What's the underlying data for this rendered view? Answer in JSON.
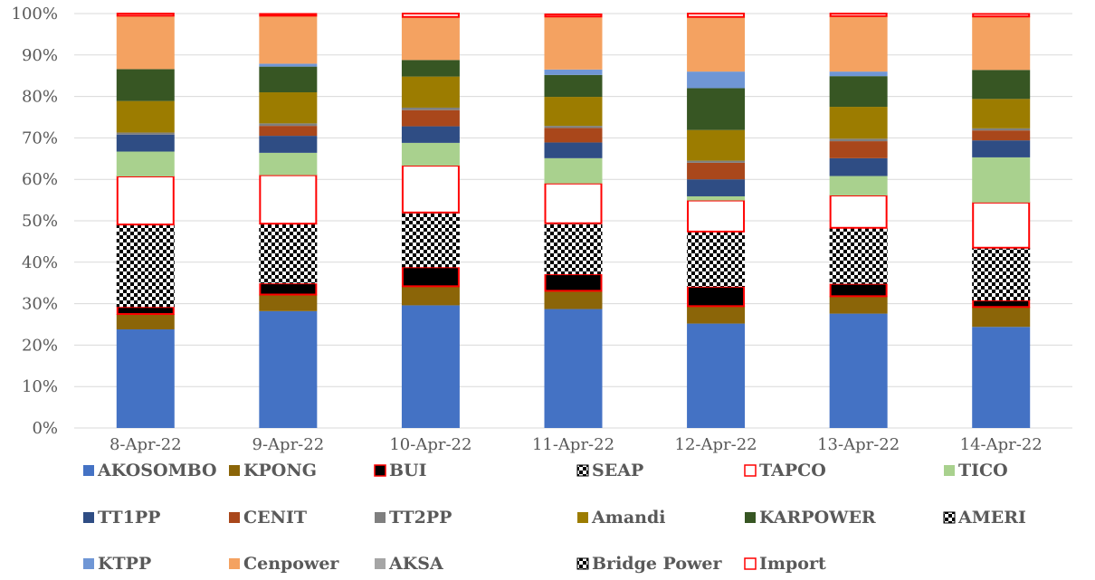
{
  "chart_data": {
    "type": "bar",
    "stacked": "percent",
    "categories": [
      "8-Apr-22",
      "9-Apr-22",
      "10-Apr-22",
      "11-Apr-22",
      "12-Apr-22",
      "13-Apr-22",
      "14-Apr-22"
    ],
    "ylim": [
      0,
      100
    ],
    "yticks": [
      "0%",
      "10%",
      "20%",
      "30%",
      "40%",
      "50%",
      "60%",
      "70%",
      "80%",
      "90%",
      "100%"
    ],
    "grid": true,
    "legend_position": "bottom",
    "series": [
      {
        "name": "AKOSOMBO",
        "color": "#4472C4",
        "style": "solid",
        "values": [
          23.8,
          28.2,
          29.6,
          28.7,
          25.2,
          27.6,
          24.4
        ]
      },
      {
        "name": "KPONG",
        "color": "#8B6508",
        "style": "solid",
        "values": [
          3.7,
          4.0,
          4.6,
          4.4,
          4.2,
          4.2,
          4.8
        ]
      },
      {
        "name": "BUI",
        "color": "#000000",
        "style": "outlined",
        "values": [
          1.7,
          2.7,
          4.6,
          4.0,
          4.7,
          3.0,
          1.6
        ]
      },
      {
        "name": "SEAP",
        "color": "#000000",
        "style": "checker",
        "values": [
          19.9,
          14.4,
          13.2,
          12.3,
          13.3,
          13.5,
          12.7
        ]
      },
      {
        "name": "TAPCO",
        "color": "#FFFFFF",
        "style": "outlined",
        "values": [
          11.6,
          11.7,
          11.3,
          9.6,
          7.5,
          7.8,
          10.9
        ]
      },
      {
        "name": "TICO",
        "color": "#A9D18E",
        "style": "solid",
        "values": [
          6.0,
          5.4,
          5.5,
          6.1,
          1.0,
          4.7,
          10.9
        ]
      },
      {
        "name": "TT1PP",
        "color": "#2F4D84",
        "style": "solid",
        "values": [
          4.1,
          4.1,
          4.0,
          3.8,
          4.1,
          4.3,
          4.1
        ]
      },
      {
        "name": "CENIT",
        "color": "#A9471B",
        "style": "solid",
        "values": [
          0.0,
          2.4,
          3.9,
          3.5,
          4.0,
          4.1,
          2.4
        ]
      },
      {
        "name": "TT2PP",
        "color": "#7F7F7F",
        "style": "solid",
        "values": [
          0.5,
          0.6,
          0.6,
          0.5,
          0.5,
          0.6,
          0.5
        ]
      },
      {
        "name": "Amandi",
        "color": "#9C7C00",
        "style": "solid",
        "values": [
          7.6,
          7.5,
          7.5,
          7.0,
          7.4,
          7.7,
          7.1
        ]
      },
      {
        "name": "KARPOWER",
        "color": "#375623",
        "style": "solid",
        "values": [
          7.7,
          6.2,
          4.0,
          5.3,
          10.1,
          7.4,
          7.0
        ]
      },
      {
        "name": "AMERI",
        "color": "#000000",
        "style": "checker",
        "values": [
          0.0,
          0.0,
          0.0,
          0.0,
          0.0,
          0.0,
          0.0
        ]
      },
      {
        "name": "KTPP",
        "color": "#6F96D5",
        "style": "solid",
        "values": [
          0.0,
          0.7,
          0.0,
          1.3,
          4.0,
          1.1,
          0.0
        ]
      },
      {
        "name": "Cenpower",
        "color": "#F4A261",
        "style": "solid",
        "values": [
          12.9,
          11.6,
          10.4,
          12.8,
          13.2,
          13.4,
          12.9
        ]
      },
      {
        "name": "AKSA",
        "color": "#A5A5A5",
        "style": "solid",
        "values": [
          0.0,
          0.0,
          0.0,
          0.0,
          0.0,
          0.0,
          0.0
        ]
      },
      {
        "name": "Bridge Power",
        "color": "#000000",
        "style": "checker",
        "values": [
          0.0,
          0.0,
          0.0,
          0.0,
          0.0,
          0.0,
          0.0
        ]
      },
      {
        "name": "Import",
        "color": "#FFFFFF",
        "style": "outlined",
        "values": [
          0.5,
          0.4,
          0.8,
          0.5,
          0.8,
          0.6,
          0.6
        ]
      }
    ]
  }
}
